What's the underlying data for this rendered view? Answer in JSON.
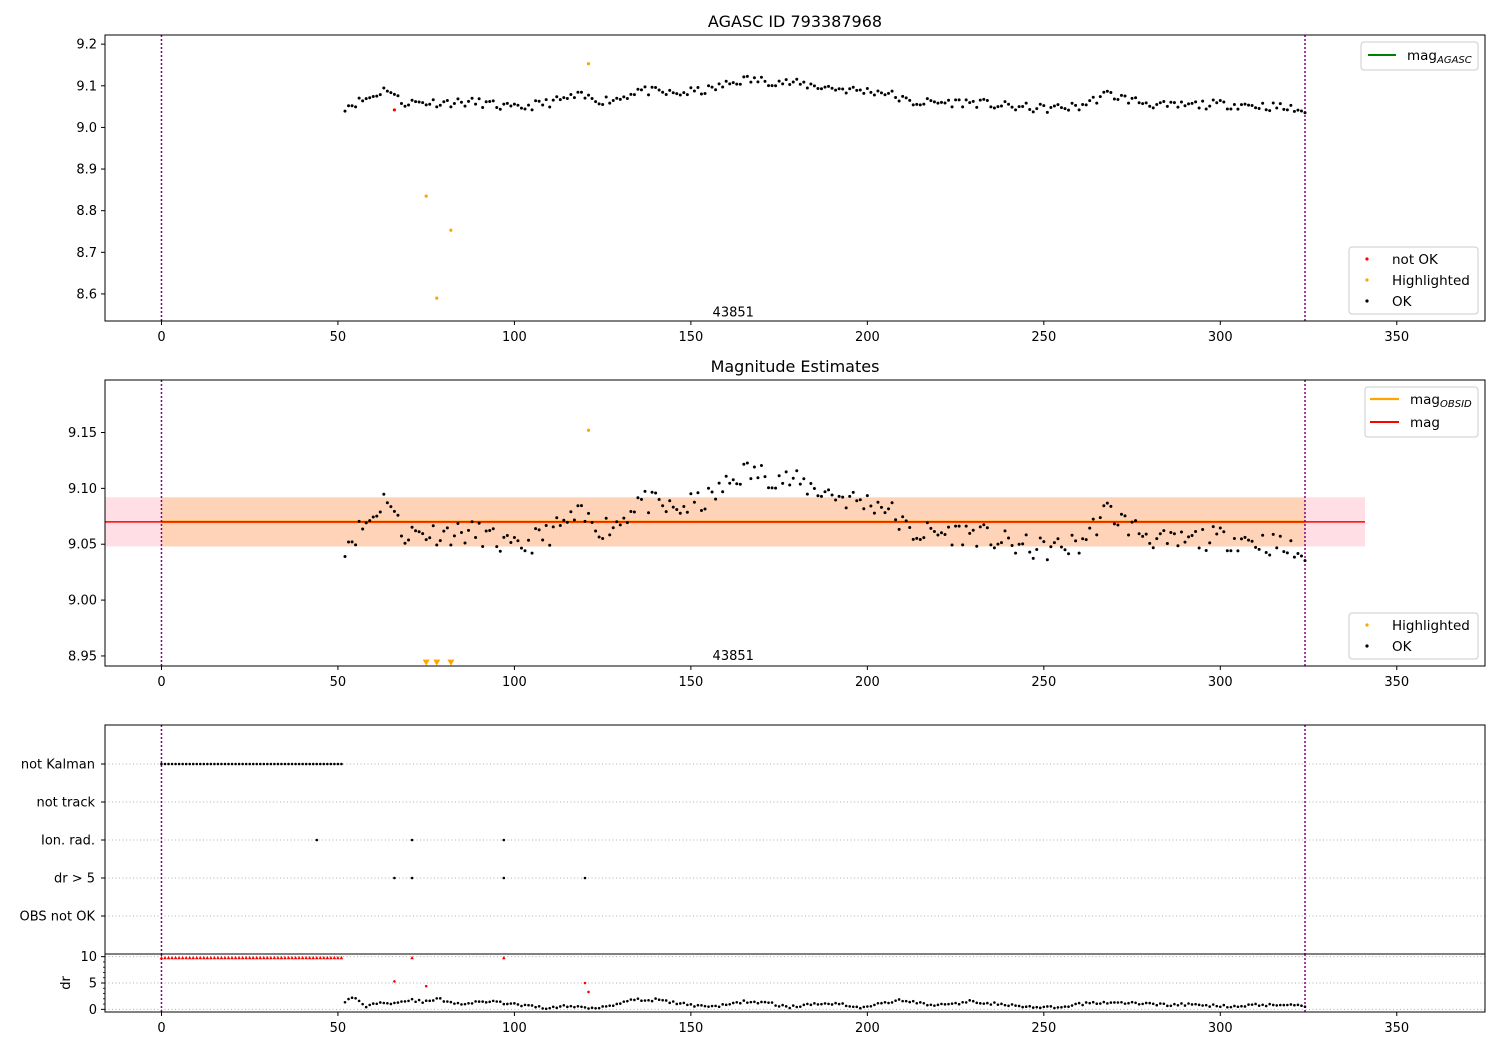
{
  "chart_data": [
    {
      "type": "scatter",
      "title": "AGASC ID 793387968",
      "xlim": [
        -16,
        375
      ],
      "ylim": [
        8.535,
        9.222
      ],
      "xticks": [
        0,
        50,
        100,
        150,
        200,
        250,
        300,
        350
      ],
      "yticks": [
        "8.6",
        "8.7",
        "8.8",
        "8.9",
        "9.0",
        "9.1",
        "9.2"
      ],
      "vlines": [
        0,
        324
      ],
      "annotation": {
        "text": "43851",
        "x": 162,
        "y": 8.555
      },
      "legend_upper": [
        {
          "label": "mag",
          "sub": "AGASC",
          "color": "#008000"
        }
      ],
      "legend_lower": [
        {
          "label": "not OK",
          "color": "#ff0000"
        },
        {
          "label": "Highlighted",
          "color": "#ffa500"
        },
        {
          "label": "OK",
          "color": "#000000"
        }
      ],
      "series": [
        {
          "key": "not_ok",
          "color": "#ff0000",
          "points": [
            [
              66,
              9.042
            ]
          ]
        },
        {
          "key": "highlighted",
          "color": "#ffa500",
          "points": [
            [
              75,
              8.835
            ],
            [
              78,
              8.59
            ],
            [
              82,
              8.753
            ],
            [
              121,
              9.153
            ]
          ]
        },
        {
          "key": "ok",
          "color": "#000000",
          "x": [
            52,
            324
          ],
          "y_anchors": [
            [
              52,
              9.05
            ],
            [
              60,
              9.075
            ],
            [
              64,
              9.095
            ],
            [
              68,
              9.06
            ],
            [
              80,
              9.06
            ],
            [
              90,
              9.06
            ],
            [
              100,
              9.045
            ],
            [
              110,
              9.06
            ],
            [
              118,
              9.075
            ],
            [
              125,
              9.065
            ],
            [
              130,
              9.07
            ],
            [
              135,
              9.09
            ],
            [
              145,
              9.08
            ],
            [
              155,
              9.09
            ],
            [
              165,
              9.115
            ],
            [
              175,
              9.11
            ],
            [
              185,
              9.1
            ],
            [
              195,
              9.09
            ],
            [
              205,
              9.085
            ],
            [
              212,
              9.06
            ],
            [
              220,
              9.06
            ],
            [
              230,
              9.06
            ],
            [
              240,
              9.05
            ],
            [
              250,
              9.045
            ],
            [
              260,
              9.05
            ],
            [
              268,
              9.08
            ],
            [
              275,
              9.065
            ],
            [
              285,
              9.05
            ],
            [
              295,
              9.055
            ],
            [
              305,
              9.055
            ],
            [
              315,
              9.05
            ],
            [
              324,
              9.04
            ]
          ]
        }
      ]
    },
    {
      "type": "scatter",
      "title": "Magnitude Estimates",
      "xlim": [
        -16,
        375
      ],
      "ylim": [
        8.941,
        9.197
      ],
      "xticks": [
        0,
        50,
        100,
        150,
        200,
        250,
        300,
        350
      ],
      "yticks": [
        "8.95",
        "9.00",
        "9.05",
        "9.10",
        "9.15"
      ],
      "vlines": [
        0,
        324
      ],
      "annotation": {
        "text": "43851",
        "x": 162,
        "y": 8.95
      },
      "mag_line": {
        "value": 9.07,
        "color": "#ff0000"
      },
      "obsid_line": {
        "value": 9.07,
        "color": "#ffa500"
      },
      "band_mag": [
        9.048,
        9.092
      ],
      "band_obsid": [
        9.048,
        9.092
      ],
      "band_x": [
        -16,
        341
      ],
      "legend_upper": [
        {
          "label": "mag",
          "sub": "OBSID",
          "color": "#ffa500"
        },
        {
          "label": "mag",
          "sub": "",
          "color": "#ff0000"
        }
      ],
      "legend_lower": [
        {
          "label": "Highlighted",
          "color": "#ffa500"
        },
        {
          "label": "OK",
          "color": "#000000"
        }
      ],
      "series": [
        {
          "key": "highlighted",
          "color": "#ffa500",
          "points": [
            [
              121,
              9.152
            ]
          ]
        },
        {
          "key": "off_scale",
          "color": "#ffa500",
          "points": [
            [
              75,
              8.944
            ],
            [
              78,
              8.944
            ],
            [
              82,
              8.944
            ]
          ]
        }
      ]
    },
    {
      "type": "scatter",
      "categories": [
        "not Kalman",
        "not track",
        "Ion. rad.",
        "dr > 5",
        "OBS not OK"
      ],
      "xlim": [
        -16,
        375
      ],
      "vlines": [
        0,
        324
      ],
      "rows": {
        "not Kalman": {
          "x": [
            0,
            51
          ],
          "step": 1
        },
        "not track": {
          "points": []
        },
        "Ion. rad.": {
          "points": [
            44,
            71,
            97
          ]
        },
        "dr > 5": {
          "points": [
            66,
            71,
            97,
            120
          ]
        },
        "OBS not OK": {
          "points": []
        }
      }
    },
    {
      "type": "scatter",
      "ylabel": "dr",
      "xlim": [
        -16,
        375
      ],
      "ylim": [
        -0.5,
        10.5
      ],
      "xticks": [
        0,
        50,
        100,
        150,
        200,
        250,
        300,
        350
      ],
      "yticks": [
        "0",
        "5",
        "10"
      ],
      "vlines": [
        0,
        324
      ],
      "series": [
        {
          "key": "red_capped",
          "color": "#ff0000",
          "x": [
            0,
            51
          ],
          "value": 9.8,
          "step": 1,
          "extra": [
            [
              71,
              9.8
            ],
            [
              97,
              9.8
            ]
          ]
        },
        {
          "key": "red_outliers",
          "color": "#ff0000",
          "points": [
            [
              66,
              5.3
            ],
            [
              75,
              4.4
            ],
            [
              120,
              5.0
            ],
            [
              121,
              3.3
            ]
          ]
        },
        {
          "key": "black",
          "color": "#000000",
          "x": [
            52,
            324
          ],
          "y_anchors": [
            [
              52,
              1.6
            ],
            [
              55,
              2.2
            ],
            [
              58,
              0.5
            ],
            [
              62,
              1.5
            ],
            [
              66,
              1.2
            ],
            [
              70,
              1.8
            ],
            [
              75,
              1.4
            ],
            [
              78,
              2.0
            ],
            [
              85,
              1.0
            ],
            [
              92,
              1.5
            ],
            [
              97,
              1.2
            ],
            [
              105,
              0.5
            ],
            [
              110,
              0.3
            ],
            [
              115,
              0.6
            ],
            [
              122,
              0.3
            ],
            [
              128,
              0.8
            ],
            [
              132,
              1.8
            ],
            [
              140,
              1.8
            ],
            [
              145,
              1.3
            ],
            [
              150,
              0.8
            ],
            [
              158,
              0.6
            ],
            [
              165,
              1.5
            ],
            [
              172,
              1.2
            ],
            [
              178,
              0.4
            ],
            [
              186,
              1.1
            ],
            [
              192,
              1.2
            ],
            [
              197,
              0.3
            ],
            [
              205,
              1.2
            ],
            [
              210,
              1.8
            ],
            [
              216,
              1.0
            ],
            [
              222,
              0.8
            ],
            [
              229,
              1.5
            ],
            [
              236,
              1.1
            ],
            [
              245,
              0.4
            ],
            [
              255,
              0.3
            ],
            [
              262,
              1.2
            ],
            [
              270,
              1.3
            ],
            [
              278,
              1.1
            ],
            [
              285,
              0.9
            ],
            [
              292,
              0.9
            ],
            [
              300,
              0.6
            ],
            [
              310,
              0.8
            ],
            [
              320,
              1.0
            ],
            [
              324,
              0.6
            ]
          ]
        }
      ]
    }
  ]
}
